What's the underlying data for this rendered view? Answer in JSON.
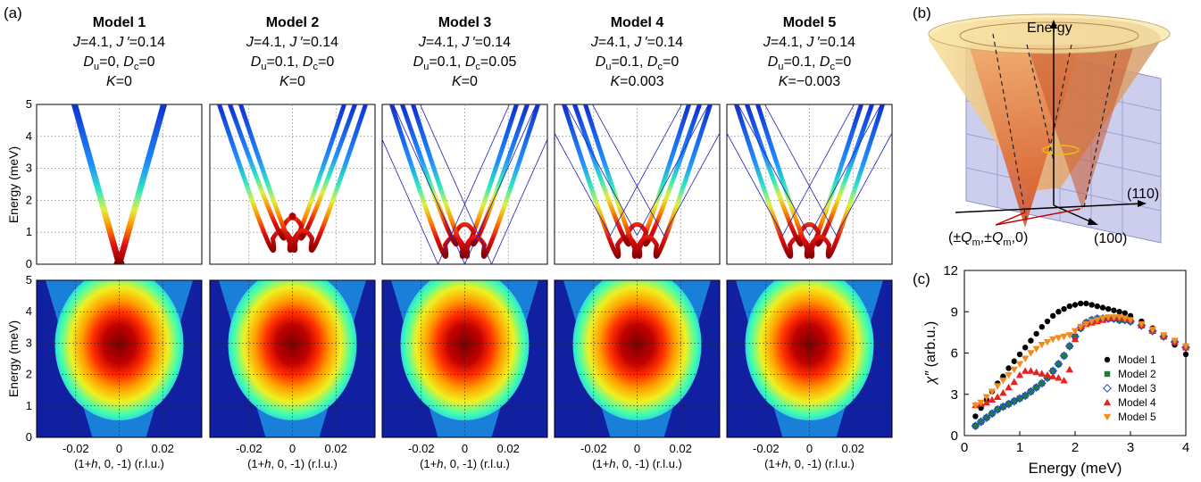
{
  "panel_labels": {
    "a": "(a)",
    "b": "(b)",
    "c": "(c)"
  },
  "models": [
    {
      "title": "Model 1",
      "line1_J": "J",
      "line1_J_val": "=4.1, ",
      "line1_Jp": "J ′",
      "line1_Jp_val": "=0.14",
      "Du_val": "=0, ",
      "Dc_val": "=0",
      "K_val": "=0"
    },
    {
      "title": "Model 2",
      "line1_J": "J",
      "line1_J_val": "=4.1, ",
      "line1_Jp": "J ′",
      "line1_Jp_val": "=0.14",
      "Du_val": "=0.1, ",
      "Dc_val": "=0",
      "K_val": "=0"
    },
    {
      "title": "Model 3",
      "line1_J": "J",
      "line1_J_val": "=4.1, ",
      "line1_Jp": "J ′",
      "line1_Jp_val": "=0.14",
      "Du_val": "=0.1, ",
      "Dc_val": "=0.05",
      "K_val": "=0"
    },
    {
      "title": "Model 4",
      "line1_J": "J",
      "line1_J_val": "=4.1, ",
      "line1_Jp": "J ′",
      "line1_Jp_val": "=0.14",
      "Du_val": "=0.1, ",
      "Dc_val": "=0",
      "K_val": "=0.003"
    },
    {
      "title": "Model 5",
      "line1_J": "J",
      "line1_J_val": "=4.1, ",
      "line1_Jp": "J ′",
      "line1_Jp_val": "=0.14",
      "Du_val": "=0.1, ",
      "Dc_val": "=0",
      "K_val": "=−0.003"
    }
  ],
  "sym": {
    "D": "D",
    "u": "u",
    "c": "c",
    "K": "K"
  },
  "axes_a": {
    "ylabel": "Energy (meV)",
    "xlabel": "(1+h, 0, -1) (r.l.u.)",
    "xlabel_pre": "(1+",
    "xlabel_h": "h",
    "xlabel_post": ", 0, -1) (r.l.u.)",
    "yticks": [
      "0",
      "1",
      "2",
      "3",
      "4",
      "5"
    ],
    "xticks": [
      "-0.02",
      "0",
      "0.02"
    ]
  },
  "panel_b": {
    "energy_label": "Energy",
    "dir110": "(110)",
    "dir100": "(100)",
    "q_label_pre": "(±",
    "q_Q": "Q",
    "q_m": "m",
    "q_mid": ",±",
    "q_post": ",0)"
  },
  "chart_data": {
    "type": "scatter",
    "title": "",
    "xlabel": "Energy (meV)",
    "ylabel": "χ″ (arb.u.)",
    "ylabel_chi": "χ″",
    "ylabel_unit": " (arb.u.)",
    "xlim": [
      0,
      4
    ],
    "ylim": [
      0,
      12
    ],
    "xticks": [
      "0",
      "1",
      "2",
      "3",
      "4"
    ],
    "yticks": [
      "0",
      "3",
      "6",
      "9",
      "12"
    ],
    "legend_position": "right",
    "series": [
      {
        "name": "Model 1",
        "color": "#000000",
        "marker": "circle",
        "x": [
          0.2,
          0.3,
          0.4,
          0.5,
          0.6,
          0.7,
          0.8,
          0.9,
          1.0,
          1.1,
          1.2,
          1.3,
          1.4,
          1.5,
          1.6,
          1.7,
          1.8,
          1.9,
          2.0,
          2.1,
          2.2,
          2.3,
          2.4,
          2.5,
          2.6,
          2.7,
          2.8,
          2.9,
          3.0,
          3.2,
          3.4,
          3.6,
          3.8,
          4.0
        ],
        "y": [
          1.4,
          2.0,
          2.6,
          3.2,
          3.8,
          4.3,
          4.9,
          5.4,
          5.9,
          6.4,
          6.9,
          7.4,
          7.9,
          8.3,
          8.7,
          9.0,
          9.2,
          9.4,
          9.5,
          9.6,
          9.6,
          9.5,
          9.4,
          9.3,
          9.2,
          9.1,
          9.0,
          8.9,
          8.7,
          8.3,
          7.8,
          7.2,
          6.6,
          5.9
        ]
      },
      {
        "name": "Model 2",
        "color": "#1e7b3a",
        "marker": "square",
        "x": [
          0.2,
          0.3,
          0.4,
          0.5,
          0.6,
          0.7,
          0.8,
          0.9,
          1.0,
          1.1,
          1.2,
          1.3,
          1.4,
          1.5,
          1.6,
          1.7,
          1.8,
          1.9,
          2.0,
          2.1,
          2.2,
          2.3,
          2.4,
          2.5,
          2.6,
          2.7,
          2.8,
          2.9,
          3.0,
          3.2,
          3.4,
          3.6,
          3.8,
          4.0
        ],
        "y": [
          0.7,
          1.0,
          1.3,
          1.6,
          1.9,
          2.1,
          2.3,
          2.5,
          2.7,
          2.9,
          3.2,
          3.5,
          3.8,
          4.2,
          4.7,
          5.2,
          5.8,
          6.5,
          7.2,
          7.8,
          8.2,
          8.4,
          8.5,
          8.5,
          8.5,
          8.5,
          8.4,
          8.4,
          8.3,
          8.0,
          7.6,
          7.2,
          6.8,
          6.4
        ]
      },
      {
        "name": "Model 3",
        "color": "#1f3fd6",
        "marker": "diamond-open",
        "x": [
          0.2,
          0.3,
          0.4,
          0.5,
          0.6,
          0.7,
          0.8,
          0.9,
          1.0,
          1.1,
          1.2,
          1.3,
          1.4,
          1.5,
          1.6,
          1.7,
          1.8,
          1.9,
          2.0,
          2.1,
          2.2,
          2.3,
          2.4,
          2.5,
          2.6,
          2.7,
          2.8,
          2.9,
          3.0,
          3.2,
          3.4,
          3.6,
          3.8,
          4.0
        ],
        "y": [
          0.7,
          1.0,
          1.3,
          1.6,
          1.9,
          2.1,
          2.3,
          2.5,
          2.7,
          2.9,
          3.2,
          3.5,
          3.8,
          4.2,
          4.7,
          5.2,
          5.8,
          6.5,
          7.2,
          7.8,
          8.2,
          8.4,
          8.5,
          8.5,
          8.5,
          8.5,
          8.4,
          8.4,
          8.3,
          8.0,
          7.6,
          7.2,
          6.8,
          6.4
        ]
      },
      {
        "name": "Model 4",
        "color": "#e8201f",
        "marker": "triangle-up",
        "x": [
          0.2,
          0.3,
          0.4,
          0.5,
          0.6,
          0.7,
          0.8,
          0.9,
          1.0,
          1.1,
          1.2,
          1.3,
          1.4,
          1.5,
          1.6,
          1.7,
          1.8,
          1.9,
          2.0,
          2.1,
          2.2,
          2.3,
          2.4,
          2.5,
          2.6,
          2.7,
          2.8,
          2.9,
          3.0,
          3.2,
          3.4,
          3.6,
          3.8,
          4.0
        ],
        "y": [
          2.2,
          2.3,
          2.4,
          2.6,
          2.8,
          3.1,
          3.5,
          3.9,
          4.4,
          4.7,
          4.7,
          4.6,
          4.5,
          4.4,
          4.3,
          4.2,
          4.0,
          4.8,
          7.0,
          7.9,
          8.1,
          8.2,
          8.3,
          8.4,
          8.5,
          8.6,
          8.6,
          8.5,
          8.4,
          8.0,
          7.6,
          7.2,
          6.8,
          6.4
        ]
      },
      {
        "name": "Model 5",
        "color": "#f28c1e",
        "marker": "triangle-down",
        "x": [
          0.2,
          0.3,
          0.4,
          0.5,
          0.6,
          0.7,
          0.8,
          0.9,
          1.0,
          1.1,
          1.2,
          1.3,
          1.4,
          1.5,
          1.6,
          1.7,
          1.8,
          1.9,
          2.0,
          2.1,
          2.2,
          2.3,
          2.4,
          2.5,
          2.6,
          2.7,
          2.8,
          2.9,
          3.0,
          3.2,
          3.4,
          3.6,
          3.8,
          4.0
        ],
        "y": [
          2.2,
          2.4,
          2.8,
          3.2,
          3.6,
          4.0,
          4.4,
          4.8,
          5.2,
          5.6,
          6.0,
          6.3,
          6.6,
          6.8,
          7.0,
          7.1,
          7.2,
          7.3,
          7.6,
          7.9,
          8.1,
          8.3,
          8.4,
          8.5,
          8.6,
          8.6,
          8.6,
          8.5,
          8.4,
          8.1,
          7.7,
          7.3,
          6.9,
          6.5
        ]
      }
    ]
  }
}
